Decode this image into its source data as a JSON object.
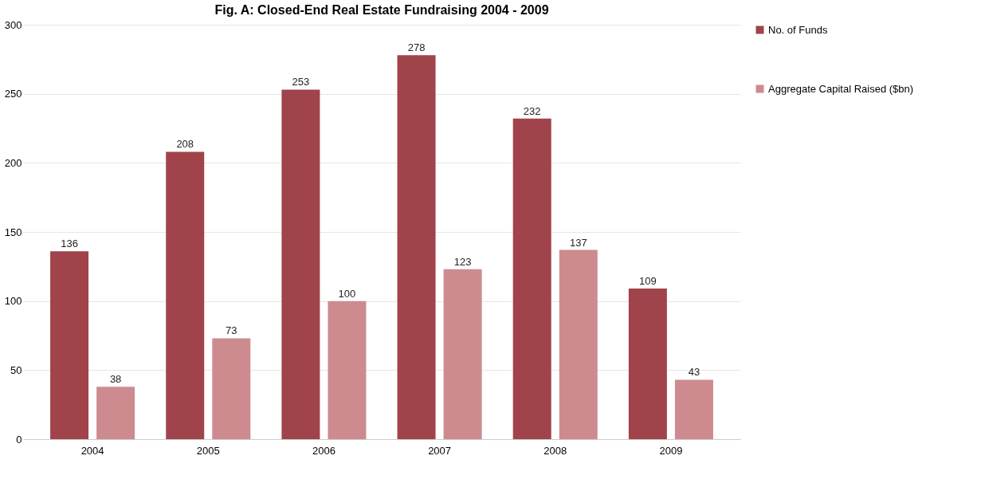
{
  "chart_data": {
    "type": "bar",
    "title": "Fig. A: Closed-End Real Estate Fundraising 2004 - 2009",
    "categories": [
      "2004",
      "2005",
      "2006",
      "2007",
      "2008",
      "2009"
    ],
    "series": [
      {
        "name": "No. of Funds",
        "color": "#a0434a",
        "values": [
          136,
          208,
          253,
          278,
          232,
          109
        ]
      },
      {
        "name": "Aggregate Capital Raised ($bn)",
        "color": "#cd8b8f",
        "values": [
          38,
          73,
          100,
          123,
          137,
          43
        ]
      }
    ],
    "ylim": [
      0,
      300
    ],
    "yticks": [
      0,
      50,
      100,
      150,
      200,
      250,
      300
    ],
    "grid": "y",
    "legend": "right",
    "data_labels": true
  }
}
